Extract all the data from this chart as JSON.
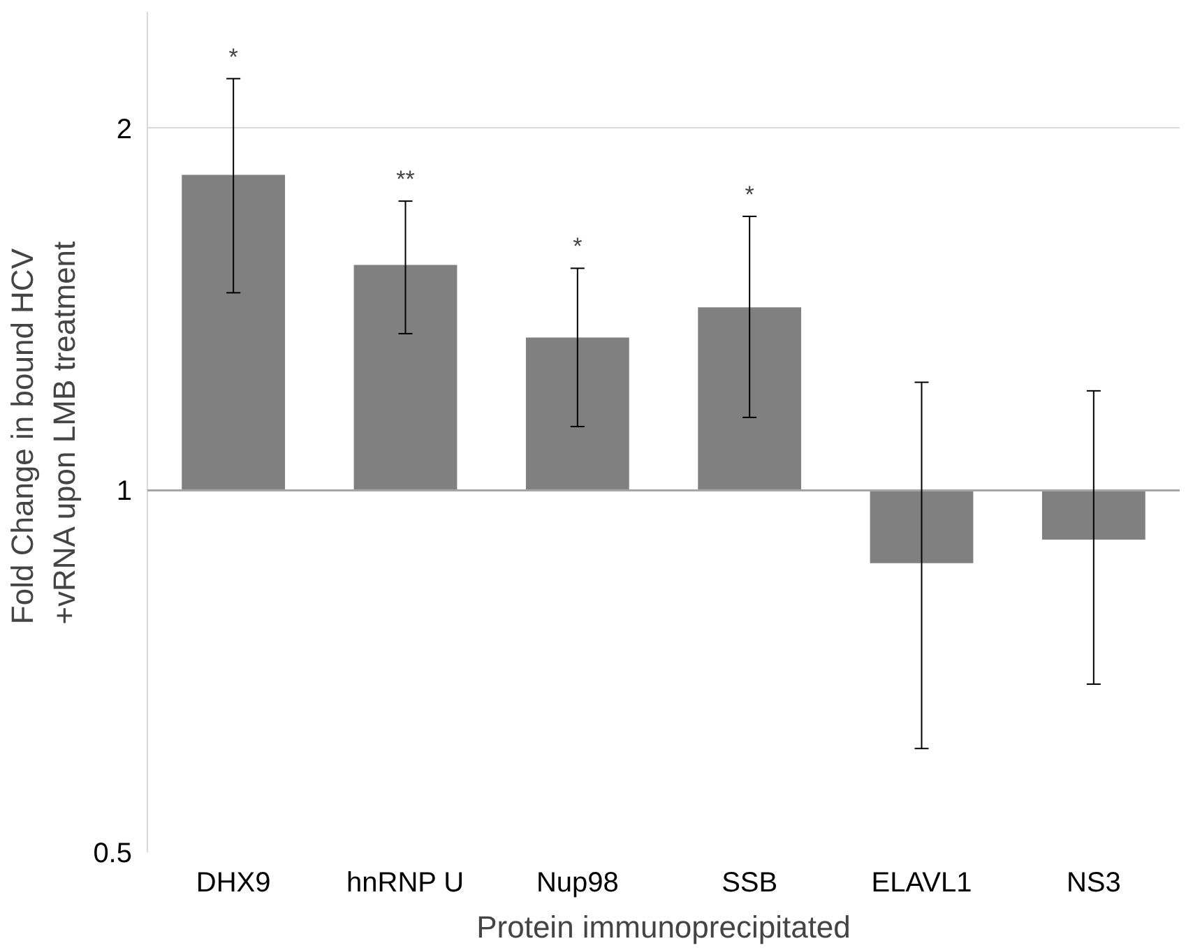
{
  "chart_data": {
    "type": "bar",
    "xlabel": "Protein immunoprecipitated",
    "ylabel": "Fold Change in bound  HCV\n+vRNA upon LMB treatment",
    "categories": [
      "DHX9",
      "hnRNP U",
      "Nup98",
      "SSB",
      "ELAVL1",
      "NS3"
    ],
    "base": [
      1,
      1,
      1,
      1,
      1,
      1
    ],
    "values": [
      0.83,
      0.54,
      0.34,
      0.42,
      -0.13,
      -0.09
    ],
    "errors": [
      [
        1.46,
        2.2
      ],
      [
        1.35,
        1.74
      ],
      [
        1.13,
        1.53
      ],
      [
        1.15,
        1.69
      ],
      [
        0.61,
        1.23
      ],
      [
        0.69,
        1.21
      ]
    ],
    "color": "#808080",
    "log": "y",
    "ylim": [
      0.5,
      2.5
    ],
    "yticks": [
      0.5,
      1,
      2
    ],
    "grid": "y",
    "ref_lines": [
      {
        "axis": "y",
        "value": 1,
        "color": "#a6a6a6"
      }
    ],
    "annotations": [
      {
        "text": "*",
        "x": "DHX9",
        "y": 2.2
      },
      {
        "text": "**",
        "x": "hnRNP U",
        "y": 1.74
      },
      {
        "text": "*",
        "x": "Nup98",
        "y": 1.53
      },
      {
        "text": "*",
        "x": "SSB",
        "y": 1.69
      }
    ]
  }
}
